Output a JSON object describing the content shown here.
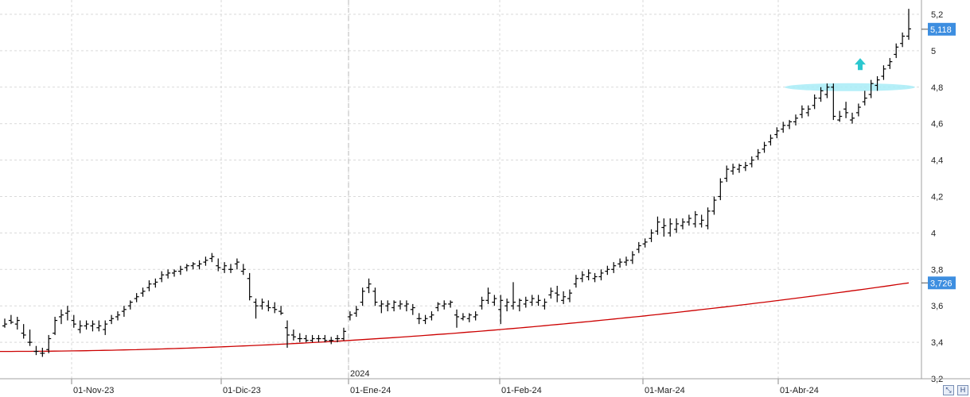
{
  "chart_data": {
    "type": "ohlc",
    "title": "",
    "xlabel": "",
    "ylabel": "",
    "ylim": [
      3.2,
      5.26
    ],
    "grid": true,
    "y_ticks": [
      "3,2",
      "3,4",
      "3,6",
      "3,8",
      "4",
      "4,2",
      "4,4",
      "4,6",
      "4,8",
      "5",
      "5,2"
    ],
    "x_tick_labels": [
      "01-Nov-23",
      "01-Dic-23",
      "01-Ene-24",
      "01-Feb-24",
      "01-Mar-24",
      "01-Abr-24"
    ],
    "year_label": "2024",
    "series": [
      {
        "name": "",
        "kind": "ohlc",
        "color": "#000000",
        "bars": [
          [
            3.49,
            3.53,
            3.48,
            3.5
          ],
          [
            3.52,
            3.55,
            3.5,
            3.51
          ],
          [
            3.5,
            3.54,
            3.47,
            3.52
          ],
          [
            3.45,
            3.5,
            3.42,
            3.44
          ],
          [
            3.4,
            3.47,
            3.38,
            3.4
          ],
          [
            3.35,
            3.38,
            3.33,
            3.35
          ],
          [
            3.34,
            3.37,
            3.32,
            3.34
          ],
          [
            3.36,
            3.44,
            3.34,
            3.42
          ],
          [
            3.45,
            3.54,
            3.44,
            3.52
          ],
          [
            3.54,
            3.58,
            3.5,
            3.55
          ],
          [
            3.56,
            3.6,
            3.52,
            3.57
          ],
          [
            3.52,
            3.55,
            3.48,
            3.5
          ],
          [
            3.47,
            3.52,
            3.45,
            3.49
          ],
          [
            3.49,
            3.52,
            3.47,
            3.5
          ],
          [
            3.49,
            3.52,
            3.46,
            3.5
          ],
          [
            3.48,
            3.52,
            3.46,
            3.49
          ],
          [
            3.47,
            3.52,
            3.44,
            3.5
          ],
          [
            3.52,
            3.55,
            3.5,
            3.53
          ],
          [
            3.54,
            3.57,
            3.52,
            3.55
          ],
          [
            3.57,
            3.6,
            3.54,
            3.58
          ],
          [
            3.6,
            3.63,
            3.58,
            3.62
          ],
          [
            3.64,
            3.67,
            3.62,
            3.65
          ],
          [
            3.67,
            3.7,
            3.65,
            3.68
          ],
          [
            3.7,
            3.74,
            3.68,
            3.72
          ],
          [
            3.72,
            3.75,
            3.7,
            3.73
          ],
          [
            3.75,
            3.79,
            3.73,
            3.77
          ],
          [
            3.77,
            3.8,
            3.75,
            3.78
          ],
          [
            3.78,
            3.8,
            3.76,
            3.79
          ],
          [
            3.79,
            3.82,
            3.77,
            3.8
          ],
          [
            3.81,
            3.83,
            3.79,
            3.82
          ],
          [
            3.82,
            3.84,
            3.8,
            3.83
          ],
          [
            3.82,
            3.85,
            3.8,
            3.83
          ],
          [
            3.84,
            3.87,
            3.82,
            3.85
          ],
          [
            3.86,
            3.89,
            3.84,
            3.87
          ],
          [
            3.82,
            3.86,
            3.79,
            3.81
          ],
          [
            3.8,
            3.84,
            3.78,
            3.82
          ],
          [
            3.8,
            3.83,
            3.78,
            3.8
          ],
          [
            3.83,
            3.86,
            3.8,
            3.84
          ],
          [
            3.79,
            3.83,
            3.77,
            3.8
          ],
          [
            3.75,
            3.78,
            3.63,
            3.65
          ],
          [
            3.62,
            3.64,
            3.53,
            3.6
          ],
          [
            3.6,
            3.64,
            3.58,
            3.62
          ],
          [
            3.6,
            3.63,
            3.57,
            3.59
          ],
          [
            3.59,
            3.62,
            3.56,
            3.58
          ],
          [
            3.57,
            3.6,
            3.55,
            3.56
          ],
          [
            3.48,
            3.52,
            3.37,
            3.44
          ],
          [
            3.44,
            3.47,
            3.41,
            3.43
          ],
          [
            3.42,
            3.45,
            3.4,
            3.42
          ],
          [
            3.42,
            3.44,
            3.4,
            3.41
          ],
          [
            3.41,
            3.44,
            3.4,
            3.42
          ],
          [
            3.42,
            3.44,
            3.4,
            3.42
          ],
          [
            3.42,
            3.44,
            3.4,
            3.41
          ],
          [
            3.41,
            3.43,
            3.39,
            3.41
          ],
          [
            3.42,
            3.44,
            3.4,
            3.42
          ],
          [
            3.42,
            3.48,
            3.41,
            3.46
          ],
          [
            3.54,
            3.57,
            3.52,
            3.55
          ],
          [
            3.56,
            3.6,
            3.54,
            3.58
          ],
          [
            3.62,
            3.7,
            3.6,
            3.68
          ],
          [
            3.7,
            3.75,
            3.67,
            3.72
          ],
          [
            3.68,
            3.7,
            3.6,
            3.62
          ],
          [
            3.6,
            3.63,
            3.56,
            3.61
          ],
          [
            3.6,
            3.63,
            3.57,
            3.61
          ],
          [
            3.59,
            3.63,
            3.57,
            3.62
          ],
          [
            3.6,
            3.63,
            3.58,
            3.61
          ],
          [
            3.6,
            3.63,
            3.57,
            3.61
          ],
          [
            3.58,
            3.61,
            3.55,
            3.59
          ],
          [
            3.53,
            3.56,
            3.5,
            3.53
          ],
          [
            3.52,
            3.55,
            3.5,
            3.53
          ],
          [
            3.54,
            3.57,
            3.52,
            3.55
          ],
          [
            3.59,
            3.62,
            3.57,
            3.61
          ],
          [
            3.6,
            3.63,
            3.58,
            3.61
          ],
          [
            3.61,
            3.63,
            3.59,
            3.62
          ],
          [
            3.55,
            3.58,
            3.48,
            3.54
          ],
          [
            3.53,
            3.56,
            3.52,
            3.54
          ],
          [
            3.53,
            3.56,
            3.51,
            3.55
          ],
          [
            3.54,
            3.57,
            3.52,
            3.55
          ],
          [
            3.6,
            3.65,
            3.58,
            3.63
          ],
          [
            3.63,
            3.7,
            3.61,
            3.67
          ],
          [
            3.62,
            3.66,
            3.6,
            3.64
          ],
          [
            3.58,
            3.66,
            3.5,
            3.63
          ],
          [
            3.6,
            3.64,
            3.57,
            3.62
          ],
          [
            3.6,
            3.73,
            3.58,
            3.62
          ],
          [
            3.6,
            3.64,
            3.57,
            3.63
          ],
          [
            3.61,
            3.65,
            3.59,
            3.63
          ],
          [
            3.62,
            3.66,
            3.6,
            3.64
          ],
          [
            3.62,
            3.66,
            3.6,
            3.63
          ],
          [
            3.6,
            3.64,
            3.58,
            3.62
          ],
          [
            3.66,
            3.7,
            3.64,
            3.68
          ],
          [
            3.67,
            3.71,
            3.62,
            3.66
          ],
          [
            3.63,
            3.68,
            3.61,
            3.65
          ],
          [
            3.64,
            3.69,
            3.62,
            3.67
          ],
          [
            3.72,
            3.77,
            3.7,
            3.75
          ],
          [
            3.75,
            3.79,
            3.73,
            3.77
          ],
          [
            3.76,
            3.8,
            3.74,
            3.78
          ],
          [
            3.75,
            3.78,
            3.73,
            3.76
          ],
          [
            3.76,
            3.8,
            3.74,
            3.78
          ],
          [
            3.79,
            3.82,
            3.77,
            3.8
          ],
          [
            3.8,
            3.84,
            3.78,
            3.82
          ],
          [
            3.83,
            3.86,
            3.81,
            3.84
          ],
          [
            3.84,
            3.87,
            3.82,
            3.85
          ],
          [
            3.85,
            3.9,
            3.83,
            3.88
          ],
          [
            3.91,
            3.95,
            3.89,
            3.93
          ],
          [
            3.94,
            3.97,
            3.92,
            3.95
          ],
          [
            3.97,
            4.02,
            3.95,
            4.0
          ],
          [
            4.01,
            4.09,
            3.99,
            4.06
          ],
          [
            4.03,
            4.08,
            3.98,
            4.04
          ],
          [
            4.0,
            4.08,
            3.98,
            4.05
          ],
          [
            4.02,
            4.08,
            4.0,
            4.05
          ],
          [
            4.04,
            4.08,
            4.02,
            4.06
          ],
          [
            4.06,
            4.1,
            4.04,
            4.08
          ],
          [
            4.05,
            4.12,
            4.03,
            4.1
          ],
          [
            4.05,
            4.1,
            4.03,
            4.07
          ],
          [
            4.04,
            4.14,
            4.02,
            4.12
          ],
          [
            4.12,
            4.2,
            4.1,
            4.18
          ],
          [
            4.2,
            4.3,
            4.18,
            4.28
          ],
          [
            4.3,
            4.37,
            4.28,
            4.35
          ],
          [
            4.34,
            4.38,
            4.32,
            4.36
          ],
          [
            4.35,
            4.38,
            4.33,
            4.37
          ],
          [
            4.36,
            4.39,
            4.34,
            4.37
          ],
          [
            4.38,
            4.42,
            4.36,
            4.4
          ],
          [
            4.42,
            4.46,
            4.4,
            4.44
          ],
          [
            4.46,
            4.5,
            4.44,
            4.48
          ],
          [
            4.5,
            4.54,
            4.48,
            4.52
          ],
          [
            4.54,
            4.58,
            4.52,
            4.56
          ],
          [
            4.57,
            4.61,
            4.55,
            4.59
          ],
          [
            4.59,
            4.62,
            4.57,
            4.61
          ],
          [
            4.61,
            4.65,
            4.59,
            4.63
          ],
          [
            4.65,
            4.7,
            4.63,
            4.68
          ],
          [
            4.66,
            4.7,
            4.64,
            4.68
          ],
          [
            4.7,
            4.76,
            4.68,
            4.74
          ],
          [
            4.74,
            4.8,
            4.72,
            4.78
          ],
          [
            4.76,
            4.82,
            4.74,
            4.8
          ],
          [
            4.8,
            4.82,
            4.62,
            4.64
          ],
          [
            4.62,
            4.67,
            4.61,
            4.64
          ],
          [
            4.68,
            4.72,
            4.63,
            4.66
          ],
          [
            4.62,
            4.66,
            4.6,
            4.63
          ],
          [
            4.66,
            4.71,
            4.64,
            4.69
          ],
          [
            4.72,
            4.78,
            4.7,
            4.74
          ],
          [
            4.76,
            4.84,
            4.74,
            4.82
          ],
          [
            4.81,
            4.86,
            4.78,
            4.84
          ],
          [
            4.86,
            4.92,
            4.84,
            4.9
          ],
          [
            4.92,
            4.96,
            4.9,
            4.94
          ],
          [
            4.98,
            5.04,
            4.96,
            5.02
          ],
          [
            5.04,
            5.1,
            5.02,
            5.08
          ],
          [
            5.08,
            5.23,
            5.06,
            5.12
          ]
        ]
      },
      {
        "name": "",
        "kind": "line",
        "color": "#cc0000",
        "start": 3.35,
        "end": 3.726
      }
    ],
    "last_price_label": "5,118",
    "ma_last_label": "3,726",
    "last_price_color": "#3d8ee0",
    "ma_label_color": "#3d8ee0",
    "annotations": {
      "highlight_level": 4.8,
      "highlight_color": "#a8ecf7",
      "arrow_up_value": 4.92,
      "arrow_color": "#2cc7cf",
      "divider_value_label": "2024"
    }
  },
  "toolbar": {
    "resize_icon": "resize-icon",
    "save_icon": "save-icon"
  }
}
